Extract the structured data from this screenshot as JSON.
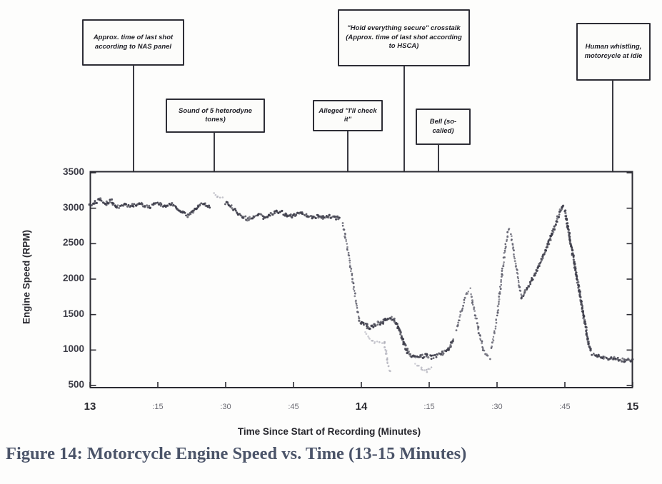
{
  "figure": {
    "caption": "Figure 14: Motorcycle Engine Speed vs. Time (13-15 Minutes)"
  },
  "annotations": [
    {
      "id": "nas-panel",
      "t_minutes": 13.16,
      "text": "Approx. time of last shot according to NAS panel"
    },
    {
      "id": "heterodyne-tones",
      "t_minutes": 13.46,
      "text": "Sound of 5 heterodyne tones)"
    },
    {
      "id": "ill-check-it",
      "t_minutes": 13.95,
      "text": "Alleged \"I'll check it\""
    },
    {
      "id": "hold-everything",
      "t_minutes": 14.16,
      "text": "\"Hold everything secure\" crosstalk (Approx. time of last shot according to HSCA)"
    },
    {
      "id": "bell-so-called",
      "t_minutes": 14.28,
      "text": "Bell (so-called)"
    },
    {
      "id": "human-whistling",
      "t_minutes": 14.92,
      "text": "Human whistling, motorcycle at idle"
    }
  ],
  "chart_data": {
    "type": "scatter",
    "title": "",
    "xlabel": "Time Since Start of Recording (Minutes)",
    "ylabel": "Engine Speed (RPM)",
    "xlim": [
      13,
      15
    ],
    "ylim": [
      500,
      3500
    ],
    "grid": false,
    "legend": "none",
    "marker_colors": {
      "dark": "#3d3d4a",
      "mid": "#5c5c6a",
      "light": "#a8a8b4"
    },
    "x_ticks": [
      {
        "t": 13.0,
        "label": "13",
        "major": true
      },
      {
        "t": 13.25,
        "label": ":15",
        "major": false
      },
      {
        "t": 13.5,
        "label": ":30",
        "major": false
      },
      {
        "t": 13.75,
        "label": ":45",
        "major": false
      },
      {
        "t": 14.0,
        "label": "14",
        "major": true
      },
      {
        "t": 14.25,
        "label": ":15",
        "major": false
      },
      {
        "t": 14.5,
        "label": ":30",
        "major": false
      },
      {
        "t": 14.75,
        "label": ":45",
        "major": false
      },
      {
        "t": 15.0,
        "label": "15",
        "major": true
      }
    ],
    "y_ticks": [
      "3500",
      "3000",
      "2500",
      "2000",
      "1500",
      "1000",
      "500"
    ],
    "series": [
      {
        "name": "Motorcycle engine speed",
        "segments": [
          {
            "mode": "dense",
            "shade": "dark",
            "pts": [
              [
                13.0,
                3030
              ],
              [
                13.02,
                3090
              ],
              [
                13.04,
                3120
              ],
              [
                13.06,
                3070
              ],
              [
                13.08,
                3100
              ],
              [
                13.1,
                3010
              ],
              [
                13.13,
                3050
              ],
              [
                13.16,
                3040
              ],
              [
                13.18,
                3070
              ],
              [
                13.2,
                3040
              ],
              [
                13.22,
                3010
              ],
              [
                13.24,
                3060
              ],
              [
                13.26,
                3050
              ],
              [
                13.28,
                3030
              ],
              [
                13.3,
                3050
              ],
              [
                13.32,
                3000
              ],
              [
                13.34,
                2940
              ],
              [
                13.36,
                2900
              ],
              [
                13.38,
                2950
              ],
              [
                13.4,
                3040
              ],
              [
                13.42,
                3080
              ],
              [
                13.44,
                3010
              ]
            ]
          },
          {
            "mode": "sparse",
            "shade": "light",
            "pts": [
              [
                13.455,
                3200
              ],
              [
                13.47,
                3170
              ],
              [
                13.49,
                3140
              ]
            ]
          },
          {
            "mode": "dense",
            "shade": "dark",
            "pts": [
              [
                13.5,
                3080
              ],
              [
                13.52,
                3020
              ],
              [
                13.54,
                2950
              ],
              [
                13.56,
                2890
              ],
              [
                13.58,
                2850
              ],
              [
                13.6,
                2880
              ],
              [
                13.62,
                2910
              ],
              [
                13.64,
                2870
              ],
              [
                13.66,
                2900
              ],
              [
                13.68,
                2940
              ],
              [
                13.7,
                2950
              ],
              [
                13.72,
                2920
              ],
              [
                13.74,
                2890
              ],
              [
                13.76,
                2910
              ],
              [
                13.78,
                2930
              ],
              [
                13.8,
                2900
              ],
              [
                13.82,
                2870
              ],
              [
                13.84,
                2890
              ],
              [
                13.86,
                2870
              ],
              [
                13.88,
                2890
              ],
              [
                13.9,
                2870
              ],
              [
                13.92,
                2850
              ]
            ]
          },
          {
            "mode": "sparse",
            "shade": "mid",
            "pts": [
              [
                13.93,
                2780
              ],
              [
                13.94,
                2620
              ],
              [
                13.95,
                2420
              ],
              [
                13.96,
                2180
              ],
              [
                13.97,
                1930
              ],
              [
                13.98,
                1680
              ],
              [
                13.99,
                1490
              ]
            ]
          },
          {
            "mode": "dense",
            "shade": "dark",
            "pts": [
              [
                13.99,
                1430
              ],
              [
                14.0,
                1390
              ],
              [
                14.01,
                1360
              ],
              [
                14.02,
                1345
              ],
              [
                14.03,
                1300
              ],
              [
                14.04,
                1330
              ],
              [
                14.05,
                1360
              ],
              [
                14.06,
                1375
              ],
              [
                14.07,
                1365
              ],
              [
                14.08,
                1395
              ],
              [
                14.09,
                1425
              ],
              [
                14.1,
                1445
              ],
              [
                14.11,
                1450
              ],
              [
                14.12,
                1425
              ],
              [
                14.13,
                1370
              ],
              [
                14.14,
                1280
              ],
              [
                14.15,
                1170
              ],
              [
                14.16,
                1060
              ],
              [
                14.17,
                980
              ],
              [
                14.18,
                930
              ]
            ]
          },
          {
            "mode": "sparse",
            "shade": "light",
            "pts": [
              [
                14.015,
                1260
              ],
              [
                14.03,
                1170
              ],
              [
                14.05,
                1100
              ],
              [
                14.085,
                1110
              ],
              [
                14.09,
                990
              ],
              [
                14.095,
                870
              ],
              [
                14.1,
                760
              ],
              [
                14.105,
                690
              ]
            ]
          },
          {
            "mode": "dense",
            "shade": "dark",
            "pts": [
              [
                14.18,
                920
              ],
              [
                14.2,
                895
              ],
              [
                14.22,
                905
              ],
              [
                14.24,
                925
              ],
              [
                14.26,
                900
              ],
              [
                14.28,
                925
              ],
              [
                14.3,
                950
              ]
            ]
          },
          {
            "mode": "sparse",
            "shade": "light",
            "pts": [
              [
                14.2,
                810
              ],
              [
                14.22,
                745
              ],
              [
                14.24,
                705
              ],
              [
                14.26,
                760
              ]
            ]
          },
          {
            "mode": "dense",
            "shade": "dark",
            "pts": [
              [
                14.3,
                960
              ],
              [
                14.32,
                1010
              ],
              [
                14.33,
                1080
              ],
              [
                14.34,
                1160
              ]
            ]
          },
          {
            "mode": "sparse",
            "shade": "mid",
            "pts": [
              [
                14.35,
                1290
              ],
              [
                14.36,
                1430
              ],
              [
                14.37,
                1570
              ],
              [
                14.38,
                1700
              ],
              [
                14.39,
                1810
              ],
              [
                14.4,
                1865
              ]
            ]
          },
          {
            "mode": "sparse",
            "shade": "mid",
            "pts": [
              [
                14.405,
                1790
              ],
              [
                14.41,
                1680
              ],
              [
                14.42,
                1500
              ],
              [
                14.43,
                1320
              ],
              [
                14.44,
                1150
              ],
              [
                14.45,
                1010
              ],
              [
                14.46,
                930
              ],
              [
                14.475,
                880
              ]
            ]
          },
          {
            "mode": "sparse",
            "shade": "mid",
            "pts": [
              [
                14.48,
                1020
              ],
              [
                14.49,
                1230
              ],
              [
                14.5,
                1480
              ],
              [
                14.51,
                1780
              ],
              [
                14.52,
                2120
              ],
              [
                14.53,
                2420
              ],
              [
                14.54,
                2660
              ],
              [
                14.545,
                2720
              ]
            ]
          },
          {
            "mode": "sparse",
            "shade": "mid",
            "pts": [
              [
                14.55,
                2640
              ],
              [
                14.56,
                2430
              ],
              [
                14.57,
                2190
              ],
              [
                14.58,
                1960
              ],
              [
                14.585,
                1840
              ],
              [
                14.59,
                1760
              ]
            ]
          },
          {
            "mode": "dense",
            "shade": "dark",
            "pts": [
              [
                14.59,
                1740
              ],
              [
                14.61,
                1860
              ],
              [
                14.63,
                2000
              ],
              [
                14.65,
                2160
              ],
              [
                14.67,
                2330
              ],
              [
                14.69,
                2510
              ],
              [
                14.71,
                2710
              ],
              [
                14.72,
                2810
              ],
              [
                14.73,
                2930
              ],
              [
                14.74,
                3030
              ],
              [
                14.745,
                3050
              ]
            ]
          },
          {
            "mode": "dense",
            "shade": "dark",
            "pts": [
              [
                14.75,
                2960
              ],
              [
                14.755,
                2860
              ],
              [
                14.76,
                2750
              ],
              [
                14.765,
                2650
              ],
              [
                14.77,
                2540
              ],
              [
                14.775,
                2440
              ],
              [
                14.78,
                2330
              ],
              [
                14.785,
                2230
              ],
              [
                14.79,
                2120
              ],
              [
                14.795,
                2010
              ],
              [
                14.8,
                1900
              ],
              [
                14.805,
                1790
              ],
              [
                14.81,
                1680
              ],
              [
                14.815,
                1570
              ],
              [
                14.82,
                1460
              ],
              [
                14.825,
                1350
              ],
              [
                14.83,
                1240
              ],
              [
                14.835,
                1130
              ],
              [
                14.84,
                1050
              ],
              [
                14.845,
                990
              ]
            ]
          },
          {
            "mode": "dense",
            "shade": "dark",
            "pts": [
              [
                14.85,
                950
              ],
              [
                14.87,
                915
              ],
              [
                14.89,
                890
              ],
              [
                14.91,
                870
              ],
              [
                14.93,
                880
              ],
              [
                14.95,
                865
              ],
              [
                14.97,
                855
              ],
              [
                15.0,
                860
              ]
            ]
          }
        ]
      }
    ]
  }
}
